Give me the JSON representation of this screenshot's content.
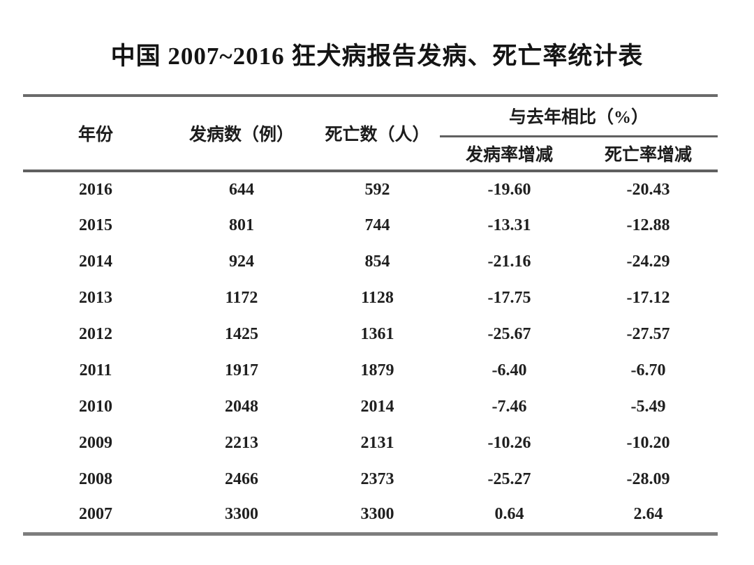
{
  "title": "中国 2007~2016 狂犬病报告发病、死亡率统计表",
  "colors": {
    "background": "#ffffff",
    "text": "#1f1f1f",
    "rule": "#6a6a6a"
  },
  "chart_data": {
    "type": "table",
    "title": "中国 2007~2016 狂犬病报告发病、死亡率统计表",
    "column_group": {
      "label": "与去年相比（%）",
      "columns": [
        "incidence_change",
        "mortality_change"
      ]
    },
    "columns": {
      "year": "年份",
      "cases": "发病数（例）",
      "deaths": "死亡数（人）",
      "incidence_change": "发病率增减",
      "mortality_change": "死亡率增减"
    },
    "column_keys": [
      "year",
      "cases",
      "deaths",
      "incidence_change",
      "mortality_change"
    ],
    "rows": [
      {
        "year": "2016",
        "cases": "644",
        "deaths": "592",
        "incidence_change": "-19.60",
        "mortality_change": "-20.43"
      },
      {
        "year": "2015",
        "cases": "801",
        "deaths": "744",
        "incidence_change": "-13.31",
        "mortality_change": "-12.88"
      },
      {
        "year": "2014",
        "cases": "924",
        "deaths": "854",
        "incidence_change": "-21.16",
        "mortality_change": "-24.29"
      },
      {
        "year": "2013",
        "cases": "1172",
        "deaths": "1128",
        "incidence_change": "-17.75",
        "mortality_change": "-17.12"
      },
      {
        "year": "2012",
        "cases": "1425",
        "deaths": "1361",
        "incidence_change": "-25.67",
        "mortality_change": "-27.57"
      },
      {
        "year": "2011",
        "cases": "1917",
        "deaths": "1879",
        "incidence_change": "-6.40",
        "mortality_change": "-6.70"
      },
      {
        "year": "2010",
        "cases": "2048",
        "deaths": "2014",
        "incidence_change": "-7.46",
        "mortality_change": "-5.49"
      },
      {
        "year": "2009",
        "cases": "2213",
        "deaths": "2131",
        "incidence_change": "-10.26",
        "mortality_change": "-10.20"
      },
      {
        "year": "2008",
        "cases": "2466",
        "deaths": "2373",
        "incidence_change": "-25.27",
        "mortality_change": "-28.09"
      },
      {
        "year": "2007",
        "cases": "3300",
        "deaths": "3300",
        "incidence_change": "0.64",
        "mortality_change": "2.64"
      }
    ]
  }
}
